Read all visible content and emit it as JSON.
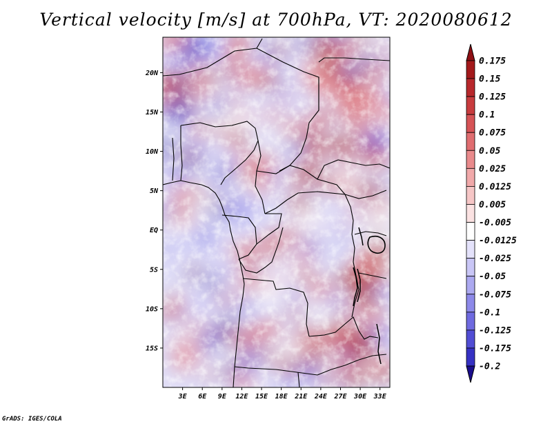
{
  "title": "Vertical velocity [m/s] at 700hPa, VT: 2020080612",
  "credit": "GrADS: IGES/COLA",
  "map": {
    "lon_range": [
      0,
      34.5
    ],
    "lat_range": [
      -20,
      24.5
    ],
    "lat_ticks": [
      {
        "lat": 20,
        "label": "20N"
      },
      {
        "lat": 15,
        "label": "15N"
      },
      {
        "lat": 10,
        "label": "10N"
      },
      {
        "lat": 5,
        "label": "5N"
      },
      {
        "lat": 0,
        "label": "EQ"
      },
      {
        "lat": -5,
        "label": "5S"
      },
      {
        "lat": -10,
        "label": "10S"
      },
      {
        "lat": -15,
        "label": "15S"
      }
    ],
    "lon_ticks": [
      {
        "lon": 3,
        "label": "3E"
      },
      {
        "lon": 6,
        "label": "6E"
      },
      {
        "lon": 9,
        "label": "9E"
      },
      {
        "lon": 12,
        "label": "12E"
      },
      {
        "lon": 15,
        "label": "15E"
      },
      {
        "lon": 18,
        "label": "18E"
      },
      {
        "lon": 21,
        "label": "21E"
      },
      {
        "lon": 24,
        "label": "24E"
      },
      {
        "lon": 27,
        "label": "27E"
      },
      {
        "lon": 30,
        "label": "30E"
      },
      {
        "lon": 33,
        "label": "33E"
      }
    ],
    "colors": {
      "ocean_tint": "#dcdcf4",
      "border": "#000000"
    }
  },
  "colorbar": {
    "levels": [
      {
        "value": 0.175,
        "label": "0.175",
        "color": "#a3191b"
      },
      {
        "value": 0.15,
        "label": "0.15",
        "color": "#b8282c"
      },
      {
        "value": 0.125,
        "label": "0.125",
        "color": "#c83c3e"
      },
      {
        "value": 0.1,
        "label": "0.1",
        "color": "#d65356"
      },
      {
        "value": 0.075,
        "label": "0.075",
        "color": "#e06d70"
      },
      {
        "value": 0.05,
        "label": "0.05",
        "color": "#e98a8c"
      },
      {
        "value": 0.025,
        "label": "0.025",
        "color": "#f1a9aa"
      },
      {
        "value": 0.0125,
        "label": "0.0125",
        "color": "#f6c6c6"
      },
      {
        "value": 0.005,
        "label": "0.005",
        "color": "#fbe2e2"
      },
      {
        "value": -0.005,
        "label": "-0.005",
        "color": "#ffffff"
      },
      {
        "value": -0.0125,
        "label": "-0.0125",
        "color": "#e4e2fb"
      },
      {
        "value": -0.025,
        "label": "-0.025",
        "color": "#c9c6f6"
      },
      {
        "value": -0.05,
        "label": "-0.05",
        "color": "#aca9f0"
      },
      {
        "value": -0.075,
        "label": "-0.075",
        "color": "#8d89e9"
      },
      {
        "value": -0.1,
        "label": "-0.1",
        "color": "#6f6ae0"
      },
      {
        "value": -0.125,
        "label": "-0.125",
        "color": "#514dd4"
      },
      {
        "value": -0.175,
        "label": "-0.175",
        "color": "#3631c3"
      },
      {
        "value": -0.2,
        "label": "-0.2",
        "color": "#2a20a8"
      }
    ],
    "top_triangle_color": "#8e0f14",
    "bottom_triangle_color": "#1a0d8c"
  }
}
